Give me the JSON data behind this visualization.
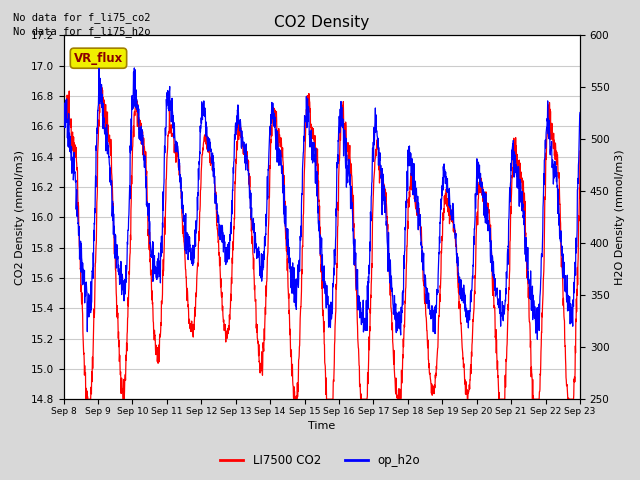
{
  "title": "CO2 Density",
  "xlabel": "Time",
  "ylabel_left": "CO2 Density (mmol/m3)",
  "ylabel_right": "H2O Density (mmol/m3)",
  "ylim_left": [
    14.8,
    17.2
  ],
  "ylim_right": [
    250,
    600
  ],
  "yticks_left": [
    14.8,
    15.0,
    15.2,
    15.4,
    15.6,
    15.8,
    16.0,
    16.2,
    16.4,
    16.6,
    16.8,
    17.0,
    17.2
  ],
  "yticks_right": [
    250,
    300,
    350,
    400,
    450,
    500,
    550,
    600
  ],
  "xtick_labels": [
    "Sep 8",
    "Sep 9",
    "Sep 10",
    "Sep 11",
    "Sep 12",
    "Sep 13",
    "Sep 14",
    "Sep 15",
    "Sep 16",
    "Sep 17",
    "Sep 18",
    "Sep 19",
    "Sep 20",
    "Sep 21",
    "Sep 22",
    "Sep 23"
  ],
  "legend_labels": [
    "LI7500 CO2",
    "op_h2o"
  ],
  "legend_colors": [
    "#ff0000",
    "#0000ff"
  ],
  "top_left_text": [
    "No data for f_li75_co2",
    "No data for f_li75_h2o"
  ],
  "vr_flux_label": "VR_flux",
  "fig_bg_color": "#d8d8d8",
  "plot_bg_color": "#ffffff",
  "grid_color": "#cccccc",
  "co2_color": "#ff0000",
  "h2o_color": "#0000ff",
  "n_points": 2000
}
